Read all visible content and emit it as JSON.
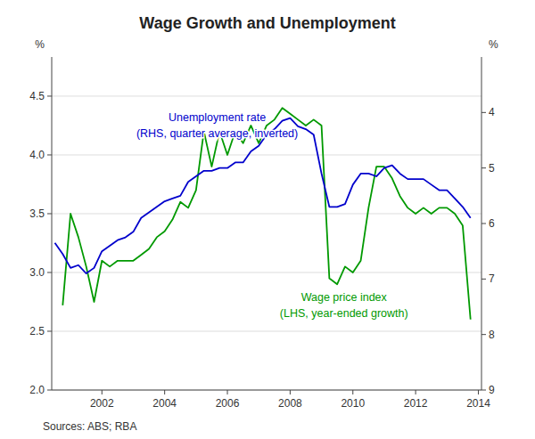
{
  "chart_data": {
    "type": "line",
    "title": "Wage Growth and Unemployment",
    "ylabel": "%",
    "y2label": "%",
    "source": "Sources:  ABS; RBA",
    "annotations": [
      {
        "lines": [
          "Unemployment rate",
          "(RHS, quarter average, inverted)"
        ],
        "color": "#0000CC"
      },
      {
        "lines": [
          "Wage price index",
          "(LHS, year-ended growth)"
        ],
        "color": "#009900"
      }
    ],
    "xlim": [
      2000.4,
      2014.1
    ],
    "xticks": [
      2002,
      2004,
      2006,
      2008,
      2010,
      2012,
      2014
    ],
    "ylim": [
      2.0,
      4.833
    ],
    "yticks": [
      {
        "value": 2.0,
        "label": "2.0"
      },
      2.5,
      {
        "value": 3.0,
        "label": "3.0"
      },
      3.5,
      {
        "value": 4.0,
        "label": "4.0"
      },
      4.5
    ],
    "y2lim": [
      9.0,
      3.0
    ],
    "y2ticks": [
      4,
      5,
      6,
      7,
      8,
      9
    ],
    "grid": true,
    "series": [
      {
        "color": "#009900",
        "axis": "y",
        "x": [
          2000.75,
          2001.0,
          2001.25,
          2001.5,
          2001.75,
          2002.0,
          2002.25,
          2002.5,
          2002.75,
          2003.0,
          2003.25,
          2003.5,
          2003.75,
          2004.0,
          2004.25,
          2004.5,
          2004.75,
          2005.0,
          2005.25,
          2005.5,
          2005.75,
          2006.0,
          2006.25,
          2006.5,
          2006.75,
          2007.0,
          2007.25,
          2007.5,
          2007.75,
          2008.0,
          2008.25,
          2008.5,
          2008.75,
          2009.0,
          2009.25,
          2009.5,
          2009.75,
          2010.0,
          2010.25,
          2010.5,
          2010.75,
          2011.0,
          2011.25,
          2011.5,
          2011.75,
          2012.0,
          2012.25,
          2012.5,
          2012.75,
          2013.0,
          2013.25,
          2013.5,
          2013.75
        ],
        "values": [
          2.72,
          3.5,
          3.3,
          3.05,
          2.75,
          3.1,
          3.05,
          3.1,
          3.1,
          3.1,
          3.15,
          3.2,
          3.3,
          3.35,
          3.45,
          3.6,
          3.55,
          3.7,
          4.2,
          3.9,
          4.2,
          4.0,
          4.2,
          4.1,
          4.25,
          4.1,
          4.25,
          4.3,
          4.4,
          4.35,
          4.3,
          4.25,
          4.3,
          4.25,
          2.95,
          2.9,
          3.05,
          3.0,
          3.1,
          3.55,
          3.9,
          3.9,
          3.8,
          3.65,
          3.55,
          3.5,
          3.55,
          3.5,
          3.55,
          3.55,
          3.5,
          3.4,
          2.6
        ]
      },
      {
        "color": "#0000CC",
        "axis": "y2",
        "x": [
          2000.5,
          2000.75,
          2001.0,
          2001.25,
          2001.5,
          2001.75,
          2002.0,
          2002.25,
          2002.5,
          2002.75,
          2003.0,
          2003.25,
          2003.5,
          2003.75,
          2004.0,
          2004.25,
          2004.5,
          2004.75,
          2005.0,
          2005.25,
          2005.5,
          2005.75,
          2006.0,
          2006.25,
          2006.5,
          2006.75,
          2007.0,
          2007.25,
          2007.5,
          2007.75,
          2008.0,
          2008.25,
          2008.5,
          2008.75,
          2009.0,
          2009.25,
          2009.5,
          2009.75,
          2010.0,
          2010.25,
          2010.5,
          2010.75,
          2011.0,
          2011.25,
          2011.5,
          2011.75,
          2012.0,
          2012.25,
          2012.5,
          2012.75,
          2013.0,
          2013.25,
          2013.5,
          2013.75
        ],
        "values": [
          6.35,
          6.55,
          6.8,
          6.75,
          6.9,
          6.8,
          6.5,
          6.4,
          6.3,
          6.25,
          6.15,
          5.9,
          5.8,
          5.7,
          5.6,
          5.55,
          5.5,
          5.25,
          5.15,
          5.05,
          5.05,
          5.0,
          5.0,
          4.9,
          4.9,
          4.7,
          4.6,
          4.4,
          4.3,
          4.15,
          4.1,
          4.25,
          4.3,
          4.4,
          5.1,
          5.7,
          5.7,
          5.65,
          5.3,
          5.1,
          5.1,
          5.15,
          5.0,
          4.95,
          5.1,
          5.2,
          5.2,
          5.2,
          5.3,
          5.4,
          5.4,
          5.55,
          5.7,
          5.9
        ]
      }
    ]
  }
}
